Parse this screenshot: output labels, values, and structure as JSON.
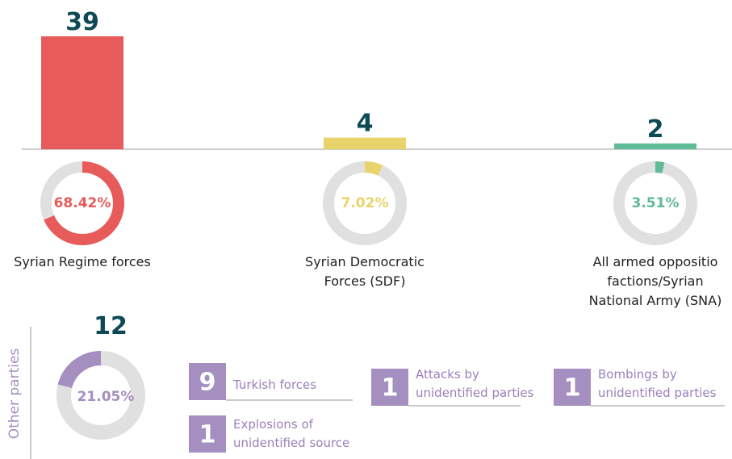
{
  "chart_data": {
    "type": "bar",
    "categories": [
      "Syrian Regime forces",
      "Syrian Democratic Forces (SDF)",
      "All armed oppositio factions/Syrian National Army (SNA)"
    ],
    "values": [
      39,
      4,
      2
    ],
    "shares": [
      68.42,
      7.02,
      3.51
    ],
    "share_labels": [
      "68.42%",
      "7.02%",
      "3.51%"
    ],
    "colors": [
      "#e85b5b",
      "#e8d46a",
      "#5fba96"
    ],
    "other": {
      "title": "Other parties",
      "value": 12,
      "share": 21.05,
      "share_label": "21.05%",
      "color": "#a58fc0",
      "items": [
        {
          "label": "Turkish forces",
          "value": 9
        },
        {
          "label": "Explosions of unidentified source",
          "value": 1
        },
        {
          "label": "Attacks by unidentified parties",
          "value": 1
        },
        {
          "label": "Bombings by unidentified parties",
          "value": 1
        }
      ]
    }
  }
}
